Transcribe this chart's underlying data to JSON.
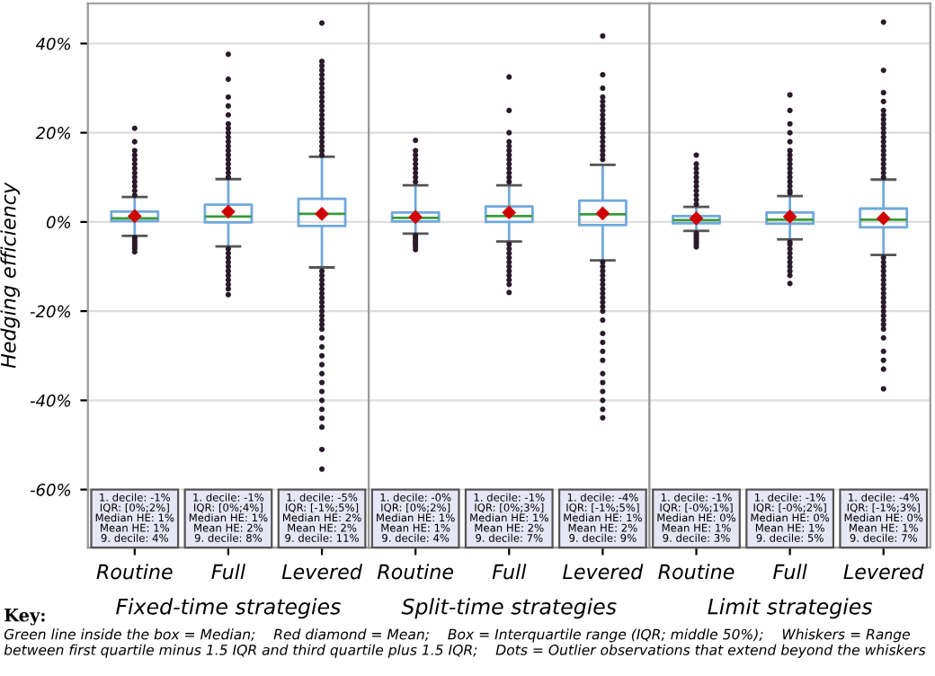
{
  "chart_data": [
    {
      "type": "box",
      "xlabel": "Fixed-time strategies",
      "ylabel": "Hedging efficiency",
      "categories": [
        "Routine",
        "Full",
        "Levered"
      ],
      "boxes": [
        {
          "low": -3.1,
          "q1": 0.2,
          "median": 0.8,
          "q3": 2.3,
          "high": 5.6,
          "mean": 1.3,
          "outliers": [
            6,
            7,
            8,
            9,
            10,
            11,
            12,
            13,
            14,
            15,
            16,
            18,
            21,
            -3.5,
            -4,
            -4.5,
            -5,
            -5.5,
            -6,
            -6.7
          ]
        },
        {
          "low": -5.5,
          "q1": -0.1,
          "median": 1.2,
          "q3": 3.9,
          "high": 9.6,
          "mean": 2.3,
          "outliers": [
            10,
            11,
            12,
            13,
            14,
            15,
            16,
            17,
            18,
            19,
            20,
            21,
            22,
            24,
            26,
            28,
            32,
            37.6,
            -6,
            -7,
            -8,
            -9,
            -10,
            -11,
            -12,
            -13,
            -14,
            -15,
            -16.3
          ]
        },
        {
          "low": -10.2,
          "q1": -0.9,
          "median": 1.8,
          "q3": 5.2,
          "high": 14.6,
          "mean": 1.8,
          "outliers": [
            15,
            16,
            17,
            18,
            19,
            20,
            21,
            22,
            23,
            24,
            25,
            26,
            27,
            28,
            29,
            30,
            31,
            32,
            33,
            34,
            35,
            36,
            44.6,
            -11,
            -12,
            -13,
            -14,
            -15,
            -16,
            -17,
            -18,
            -19,
            -20,
            -21,
            -22,
            -23,
            -24,
            -26,
            -28,
            -30,
            -32,
            -34,
            -36,
            -38,
            -40,
            -42,
            -44,
            -46,
            -51,
            -55.4
          ]
        }
      ],
      "ylim": [
        -73,
        49
      ],
      "yticks": [
        {
          "value": -60,
          "label": "-60%"
        },
        {
          "value": -40,
          "label": "-40%"
        },
        {
          "value": -20,
          "label": "-20%"
        },
        {
          "value": 0,
          "label": "0%"
        },
        {
          "value": 20,
          "label": "20%"
        },
        {
          "value": 40,
          "label": "40%"
        }
      ],
      "grid": "y",
      "annotations": [
        "1. decile: -1%\nIQR: [0%;2%]\nMedian HE: 1%\nMean HE: 1%\n9. decile: 4%",
        "1. decile: -1%\nIQR: [0%;4%]\nMedian HE: 1%\nMean HE: 2%\n9. decile: 8%",
        "1. decile: -5%\nIQR: [-1%;5%]\nMedian HE: 2%\nMean HE: 2%\n9. decile: 11%"
      ]
    },
    {
      "type": "box",
      "xlabel": "Split-time strategies",
      "categories": [
        "Routine",
        "Full",
        "Levered"
      ],
      "boxes": [
        {
          "low": -2.6,
          "q1": 0.1,
          "median": 0.9,
          "q3": 2.1,
          "high": 8.2,
          "mean": 1.1,
          "outliers": [
            9,
            10,
            11,
            12,
            13,
            14,
            15,
            16,
            18.3,
            -3,
            -3.5,
            -4,
            -4.5,
            -5,
            -5.5,
            -6.2
          ]
        },
        {
          "low": -4.4,
          "q1": 0.0,
          "median": 1.3,
          "q3": 3.5,
          "high": 8.2,
          "mean": 2.1,
          "outliers": [
            9,
            10,
            11,
            12,
            13,
            14,
            15,
            16,
            17,
            18,
            20,
            25,
            32.5,
            -5,
            -6,
            -7,
            -8,
            -9,
            -10,
            -11,
            -12,
            -13,
            -14,
            -15.8
          ]
        },
        {
          "low": -8.6,
          "q1": -0.7,
          "median": 1.7,
          "q3": 4.8,
          "high": 12.8,
          "mean": 1.9,
          "outliers": [
            14,
            15,
            16,
            17,
            18,
            19,
            20,
            21,
            22,
            23,
            24,
            25,
            26,
            27,
            28,
            30,
            33,
            41.7,
            -9,
            -10,
            -11,
            -12,
            -13,
            -14,
            -15,
            -16,
            -17,
            -18,
            -19,
            -20,
            -22,
            -25,
            -27,
            -29,
            -31,
            -34,
            -36,
            -38,
            -40,
            -42,
            -43.9
          ]
        }
      ],
      "ylim": [
        -73,
        49
      ],
      "tick_labels": "x",
      "grid": "y",
      "annotations": [
        "1. decile: -0%\nIQR: [0%;2%]\nMedian HE: 1%\nMean HE: 1%\n9. decile: 4%",
        "1. decile: -1%\nIQR: [0%;3%]\nMedian HE: 1%\nMean HE: 2%\n9. decile: 7%",
        "1. decile: -4%\nIQR: [-1%;5%]\nMedian HE: 1%\nMean HE: 2%\n9. decile: 9%"
      ]
    },
    {
      "type": "box",
      "xlabel": "Limit strategies",
      "categories": [
        "Routine",
        "Full",
        "Levered"
      ],
      "boxes": [
        {
          "low": -2.0,
          "q1": -0.3,
          "median": 0.4,
          "q3": 1.3,
          "high": 3.4,
          "mean": 0.8,
          "outliers": [
            4,
            5,
            6,
            7,
            8,
            9,
            10,
            11,
            12,
            13,
            15,
            -2.5,
            -3,
            -3.5,
            -4,
            -4.5,
            -5,
            -5.6
          ]
        },
        {
          "low": -3.9,
          "q1": -0.4,
          "median": 0.5,
          "q3": 2.1,
          "high": 5.8,
          "mean": 1.2,
          "outliers": [
            6.5,
            7,
            8,
            9,
            10,
            11,
            12,
            13,
            14,
            15,
            16,
            18,
            20,
            22,
            25,
            28.5,
            -4.5,
            -5,
            -6,
            -7,
            -8,
            -9,
            -10,
            -11,
            -12,
            -13.8
          ]
        },
        {
          "low": -7.4,
          "q1": -1.2,
          "median": 0.5,
          "q3": 3.0,
          "high": 9.5,
          "mean": 0.8,
          "outliers": [
            10,
            11,
            12,
            13,
            14,
            15,
            16,
            17,
            18,
            19,
            20,
            21,
            22,
            23,
            24,
            25,
            27,
            29,
            34,
            44.8,
            -8,
            -9,
            -10,
            -11,
            -12,
            -13,
            -14,
            -15,
            -16,
            -17,
            -18,
            -19,
            -20,
            -21,
            -22,
            -23,
            -24,
            -26,
            -29,
            -31,
            -33,
            -37.4
          ]
        }
      ],
      "ylim": [
        -73,
        49
      ],
      "tick_labels": "x",
      "grid": "y",
      "annotations": [
        "1. decile: -1%\nIQR: [-0%;1%]\nMedian HE: 0%\nMean HE: 1%\n9. decile: 3%",
        "1. decile: -1%\nIQR: [-0%;2%]\nMedian HE: 0%\nMean HE: 1%\n9. decile: 5%",
        "1. decile: -4%\nIQR: [-1%;3%]\nMedian HE: 0%\nMean HE: 1%\n9. decile: 7%",
        "Key:",
        "Green line inside the box = Median;    Red diamond = Mean;    Box = Interquartile range (IQR; middle 50%);    Whiskers = Range between first quartile minus 1.5 IQR and third quartile plus 1.5 IQR;    Dots = Outlier observations that extend beyond the whiskers"
      ]
    }
  ]
}
